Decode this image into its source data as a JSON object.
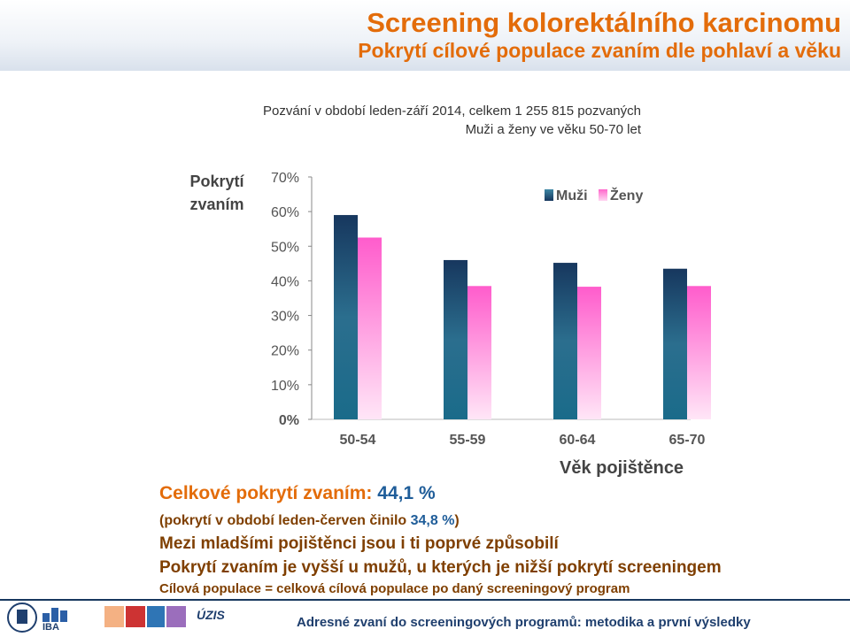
{
  "title": "Screening kolorektálního karcinomu",
  "subtitle": "Pokrytí cílové populace zvaním dle pohlaví a věku",
  "note": {
    "line1": "Pozvání v období leden-září 2014, celkem 1 255 815 pozvaných",
    "line2": "Muži a ženy ve věku 50-70 let"
  },
  "chart_data": {
    "type": "bar",
    "ylabel_line1": "Pokrytí",
    "ylabel_line2": "zvaním",
    "xlabel": "Věk pojištěnce",
    "categories": [
      "50-54",
      "55-59",
      "60-64",
      "65-70"
    ],
    "series": [
      {
        "name": "Muži",
        "values": [
          0.59,
          0.46,
          0.452,
          0.435
        ],
        "color": "#17375e"
      },
      {
        "name": "Ženy",
        "values": [
          0.525,
          0.385,
          0.383,
          0.385
        ],
        "color": "#ff66cc"
      }
    ],
    "ylim": [
      0,
      0.7
    ],
    "yticks": [
      "0%",
      "10%",
      "20%",
      "30%",
      "40%",
      "50%",
      "60%",
      "70%"
    ],
    "legend_position": "top-right",
    "grid": false
  },
  "stats": {
    "total_label": "Celkové pokrytí zvaním:",
    "total_value": "44,1 %",
    "prior_prefix": "(pokrytí v období leden-červen činilo",
    "prior_value": "34,8 %",
    "prior_suffix": ")",
    "line3": "Mezi mladšími pojištěnci jsou i ti poprvé způsobilí",
    "line4": "Pokrytí zvaním je vyšší u mužů, u kterých je nižší pokrytí screeningem",
    "line5": "Cílová populace = celková cílová populace po daný screeningový program"
  },
  "footer": {
    "text": "Adresné zvaní do screeningových programů: metodika a první výsledky",
    "logo_iba": "IBA",
    "logo_uzis": "ÚZIS"
  }
}
